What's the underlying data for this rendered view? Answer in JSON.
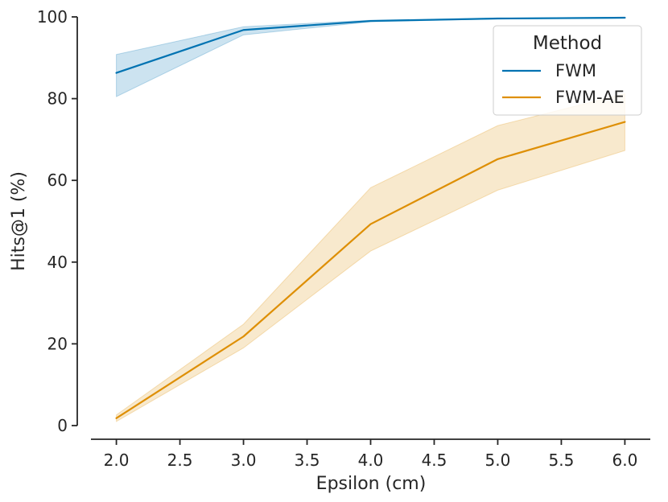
{
  "chart_data": {
    "type": "line",
    "title": "",
    "xlabel": "Epsilon (cm)",
    "ylabel": "Hits@1 (%)",
    "xlim": [
      1.8,
      6.2
    ],
    "ylim": [
      0,
      100
    ],
    "x_ticks": [
      2.0,
      2.5,
      3.0,
      3.5,
      4.0,
      4.5,
      5.0,
      5.5,
      6.0
    ],
    "x_tick_labels": [
      "2.0",
      "2.5",
      "3.0",
      "3.5",
      "4.0",
      "4.5",
      "5.0",
      "5.5",
      "6.0"
    ],
    "y_ticks": [
      0,
      20,
      40,
      60,
      80,
      100
    ],
    "y_tick_labels": [
      "0",
      "20",
      "40",
      "60",
      "80",
      "100"
    ],
    "grid": false,
    "legend": {
      "title": "Method",
      "position": "top-right"
    },
    "series": [
      {
        "name": "FWM",
        "color": "#0173b2",
        "x": [
          2.0,
          3.0,
          4.0,
          5.0,
          6.0
        ],
        "values": [
          86.3,
          96.8,
          99.0,
          99.6,
          99.8
        ],
        "ci_lower": [
          80.5,
          95.6,
          98.8,
          99.5,
          99.7
        ],
        "ci_upper": [
          90.8,
          97.6,
          99.2,
          99.7,
          99.9
        ]
      },
      {
        "name": "FWM-AE",
        "color": "#de8f05",
        "x": [
          2.0,
          3.0,
          4.0,
          5.0,
          6.0
        ],
        "values": [
          1.8,
          21.8,
          49.3,
          65.2,
          74.3
        ],
        "ci_lower": [
          1.0,
          19.0,
          42.7,
          57.6,
          67.3
        ],
        "ci_upper": [
          2.6,
          24.8,
          58.2,
          73.4,
          81.2
        ]
      }
    ]
  }
}
